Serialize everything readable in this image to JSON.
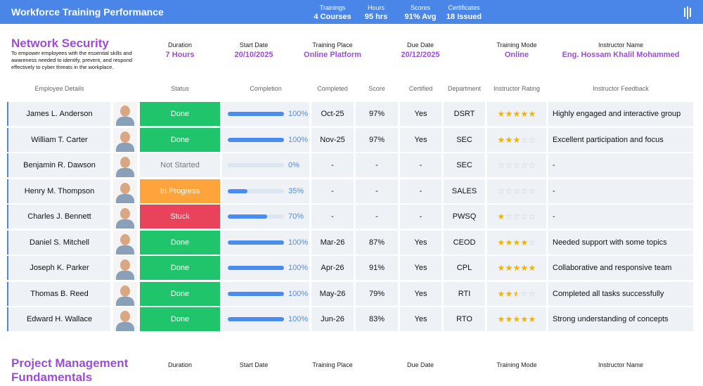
{
  "header": {
    "title": "Workforce Training Performance",
    "stats": [
      {
        "label": "Trainings",
        "value": "4 Courses"
      },
      {
        "label": "Hours",
        "value": "95 hrs"
      },
      {
        "label": "Scores",
        "value": "91% Avg"
      },
      {
        "label": "Certificates",
        "value": "18 Issued"
      }
    ]
  },
  "courses": [
    {
      "title": "Network Security",
      "description": "To empower employees with the essential skills and awareness needed to identify, prevent, and respond effectively to cyber threats in the workplace.",
      "info": [
        {
          "label": "Duration",
          "value": "7 Hours"
        },
        {
          "label": "Start Date",
          "value": "20/10/2025"
        },
        {
          "label": "Training Place",
          "value": "Online Platform"
        },
        {
          "label": "Due Date",
          "value": "20/12/2025"
        },
        {
          "label": "Training Mode",
          "value": "Online"
        },
        {
          "label": "Instructor Name",
          "value": "Eng. Hossam Khalil Mohammed"
        }
      ]
    },
    {
      "title": "Project Management Fundamentals",
      "info": [
        {
          "label": "Duration"
        },
        {
          "label": "Start Date"
        },
        {
          "label": "Training Place"
        },
        {
          "label": "Due Date"
        },
        {
          "label": "Training Mode"
        },
        {
          "label": "Instructor Name"
        }
      ]
    }
  ],
  "table": {
    "columns": [
      "Employee Details",
      "Status",
      "Completion",
      "Completed",
      "Score",
      "Certified",
      "Department",
      "Instructor Rating",
      "Instructor Feedback"
    ],
    "rows": [
      {
        "name": "James L. Anderson",
        "status": "Done",
        "status_color": "#1fc46b",
        "completion": 100,
        "completion_label": "100%",
        "completed": "Oct-25",
        "score": "97%",
        "certified": "Yes",
        "department": "DSRT",
        "rating": 5,
        "feedback": "Highly engaged and interactive group"
      },
      {
        "name": "William T. Carter",
        "status": "Done",
        "status_color": "#1fc46b",
        "completion": 100,
        "completion_label": "100%",
        "completed": "Nov-25",
        "score": "97%",
        "certified": "Yes",
        "department": "SEC",
        "rating": 3,
        "feedback": "Excellent participation and focus"
      },
      {
        "name": "Benjamin R. Dawson",
        "status": "Not Started",
        "completion": 0,
        "completion_label": "0%",
        "completed": "-",
        "score": "-",
        "certified": "-",
        "department": "SEC",
        "rating": 0,
        "feedback": "-"
      },
      {
        "name": "Henry M. Thompson",
        "status": "In Progress",
        "status_color": "#ffa43b",
        "completion": 35,
        "completion_label": "35%",
        "completed": "-",
        "score": "-",
        "certified": "-",
        "department": "SALES",
        "rating": 0,
        "feedback": "-"
      },
      {
        "name": "Charles J. Bennett",
        "status": "Stuck",
        "status_color": "#e8435a",
        "completion": 70,
        "completion_label": "70%",
        "completed": "-",
        "score": "-",
        "certified": "-",
        "department": "PWSQ",
        "rating": 1,
        "feedback": "-"
      },
      {
        "name": "Daniel S. Mitchell",
        "status": "Done",
        "status_color": "#1fc46b",
        "completion": 100,
        "completion_label": "100%",
        "completed": "Mar-26",
        "score": "87%",
        "certified": "Yes",
        "department": "CEOD",
        "rating": 4,
        "feedback": "Needed support with some topics"
      },
      {
        "name": "Joseph K. Parker",
        "status": "Done",
        "status_color": "#1fc46b",
        "completion": 100,
        "completion_label": "100%",
        "completed": "Apr-26",
        "score": "91%",
        "certified": "Yes",
        "department": "CPL",
        "rating": 5,
        "feedback": "Collaborative and responsive team"
      },
      {
        "name": "Thomas B. Reed",
        "status": "Done",
        "status_color": "#1fc46b",
        "completion": 100,
        "completion_label": "100%",
        "completed": "May-26",
        "score": "79%",
        "certified": "Yes",
        "department": "RTI",
        "rating": 2.5,
        "feedback": "Completed all tasks successfully"
      },
      {
        "name": "Edward H. Wallace",
        "status": "Done",
        "status_color": "#1fc46b",
        "completion": 100,
        "completion_label": "100%",
        "completed": "Jun-26",
        "score": "83%",
        "certified": "Yes",
        "department": "RTO",
        "rating": 5,
        "feedback": "Strong understanding of concepts"
      }
    ]
  }
}
